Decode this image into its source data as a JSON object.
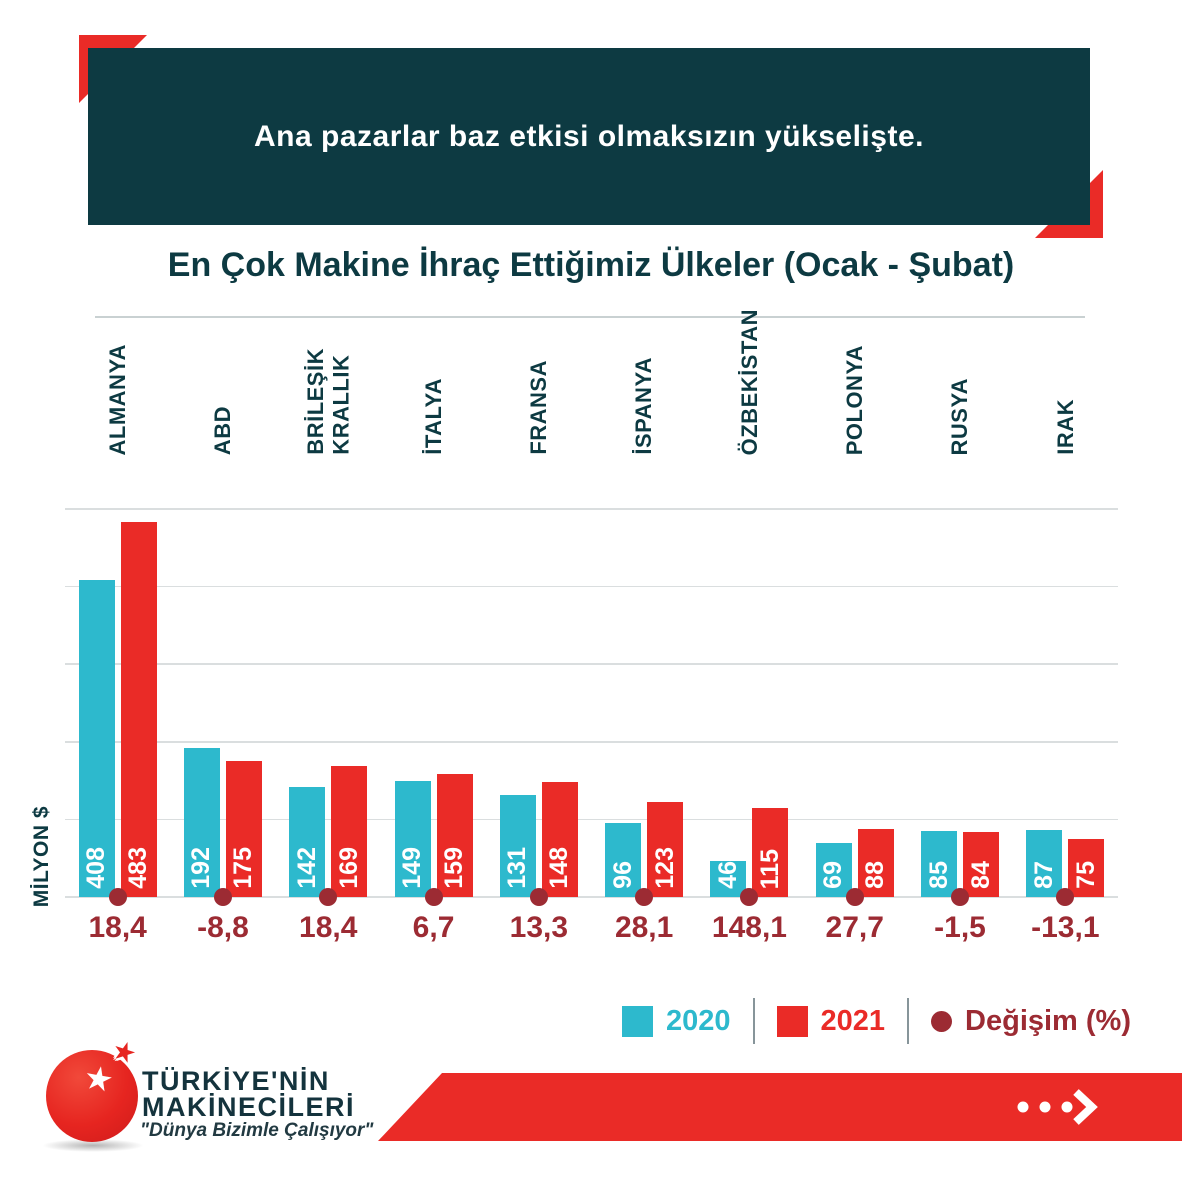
{
  "header": {
    "banner_text": "Ana pazarlar baz etkisi olmaksızın yükselişte."
  },
  "chart_data": {
    "type": "bar",
    "title": "En Çok Makine İhraç Ettiğimiz Ülkeler (Ocak - Şubat)",
    "ylabel": "MİLYON $",
    "ylim": [
      0,
      500
    ],
    "grid": true,
    "gridline_step": 100,
    "legend_position": "bottom-right",
    "categories": [
      "ALMANYA",
      "ABD",
      "BRİLEŞİK\nKRALLIK",
      "İTALYA",
      "FRANSA",
      "İSPANYA",
      "ÖZBEKİSTAN",
      "POLONYA",
      "RUSYA",
      "IRAK"
    ],
    "series": [
      {
        "name": "2020",
        "color": "#2db9cd",
        "values": [
          408,
          192,
          142,
          149,
          131,
          96,
          46,
          69,
          85,
          87
        ]
      },
      {
        "name": "2021",
        "color": "#ea2b27",
        "values": [
          483,
          175,
          169,
          159,
          148,
          123,
          115,
          88,
          84,
          75
        ]
      }
    ],
    "change_series": {
      "name": "Değişim (%)",
      "color": "#9c2b33",
      "values": [
        "18,4",
        "-8,8",
        "18,4",
        "6,7",
        "13,3",
        "28,1",
        "148,1",
        "27,7",
        "-1,5",
        "-13,1"
      ]
    }
  },
  "legend": {
    "items": [
      {
        "label": "2020",
        "marker": "square",
        "color": "#2db9cd"
      },
      {
        "label": "2021",
        "marker": "square",
        "color": "#ea2b27"
      },
      {
        "label": "Değişim (%)",
        "marker": "circle",
        "color": "#9c2b33"
      }
    ]
  },
  "footer": {
    "brand_line1": "TÜRKİYE'NİN",
    "brand_line2": "MAKİNECİLERİ",
    "slogan": "\"Dünya Bizimle Çalışıyor\"",
    "logo_icon": "red-globe-star",
    "arrow_icon": "dots-chevron-right"
  },
  "colors": {
    "banner_bg": "#0d3a42",
    "accent_red": "#ea2b27",
    "cyan": "#2db9cd",
    "maroon": "#9c2b33",
    "gridline": "#dadedf"
  }
}
